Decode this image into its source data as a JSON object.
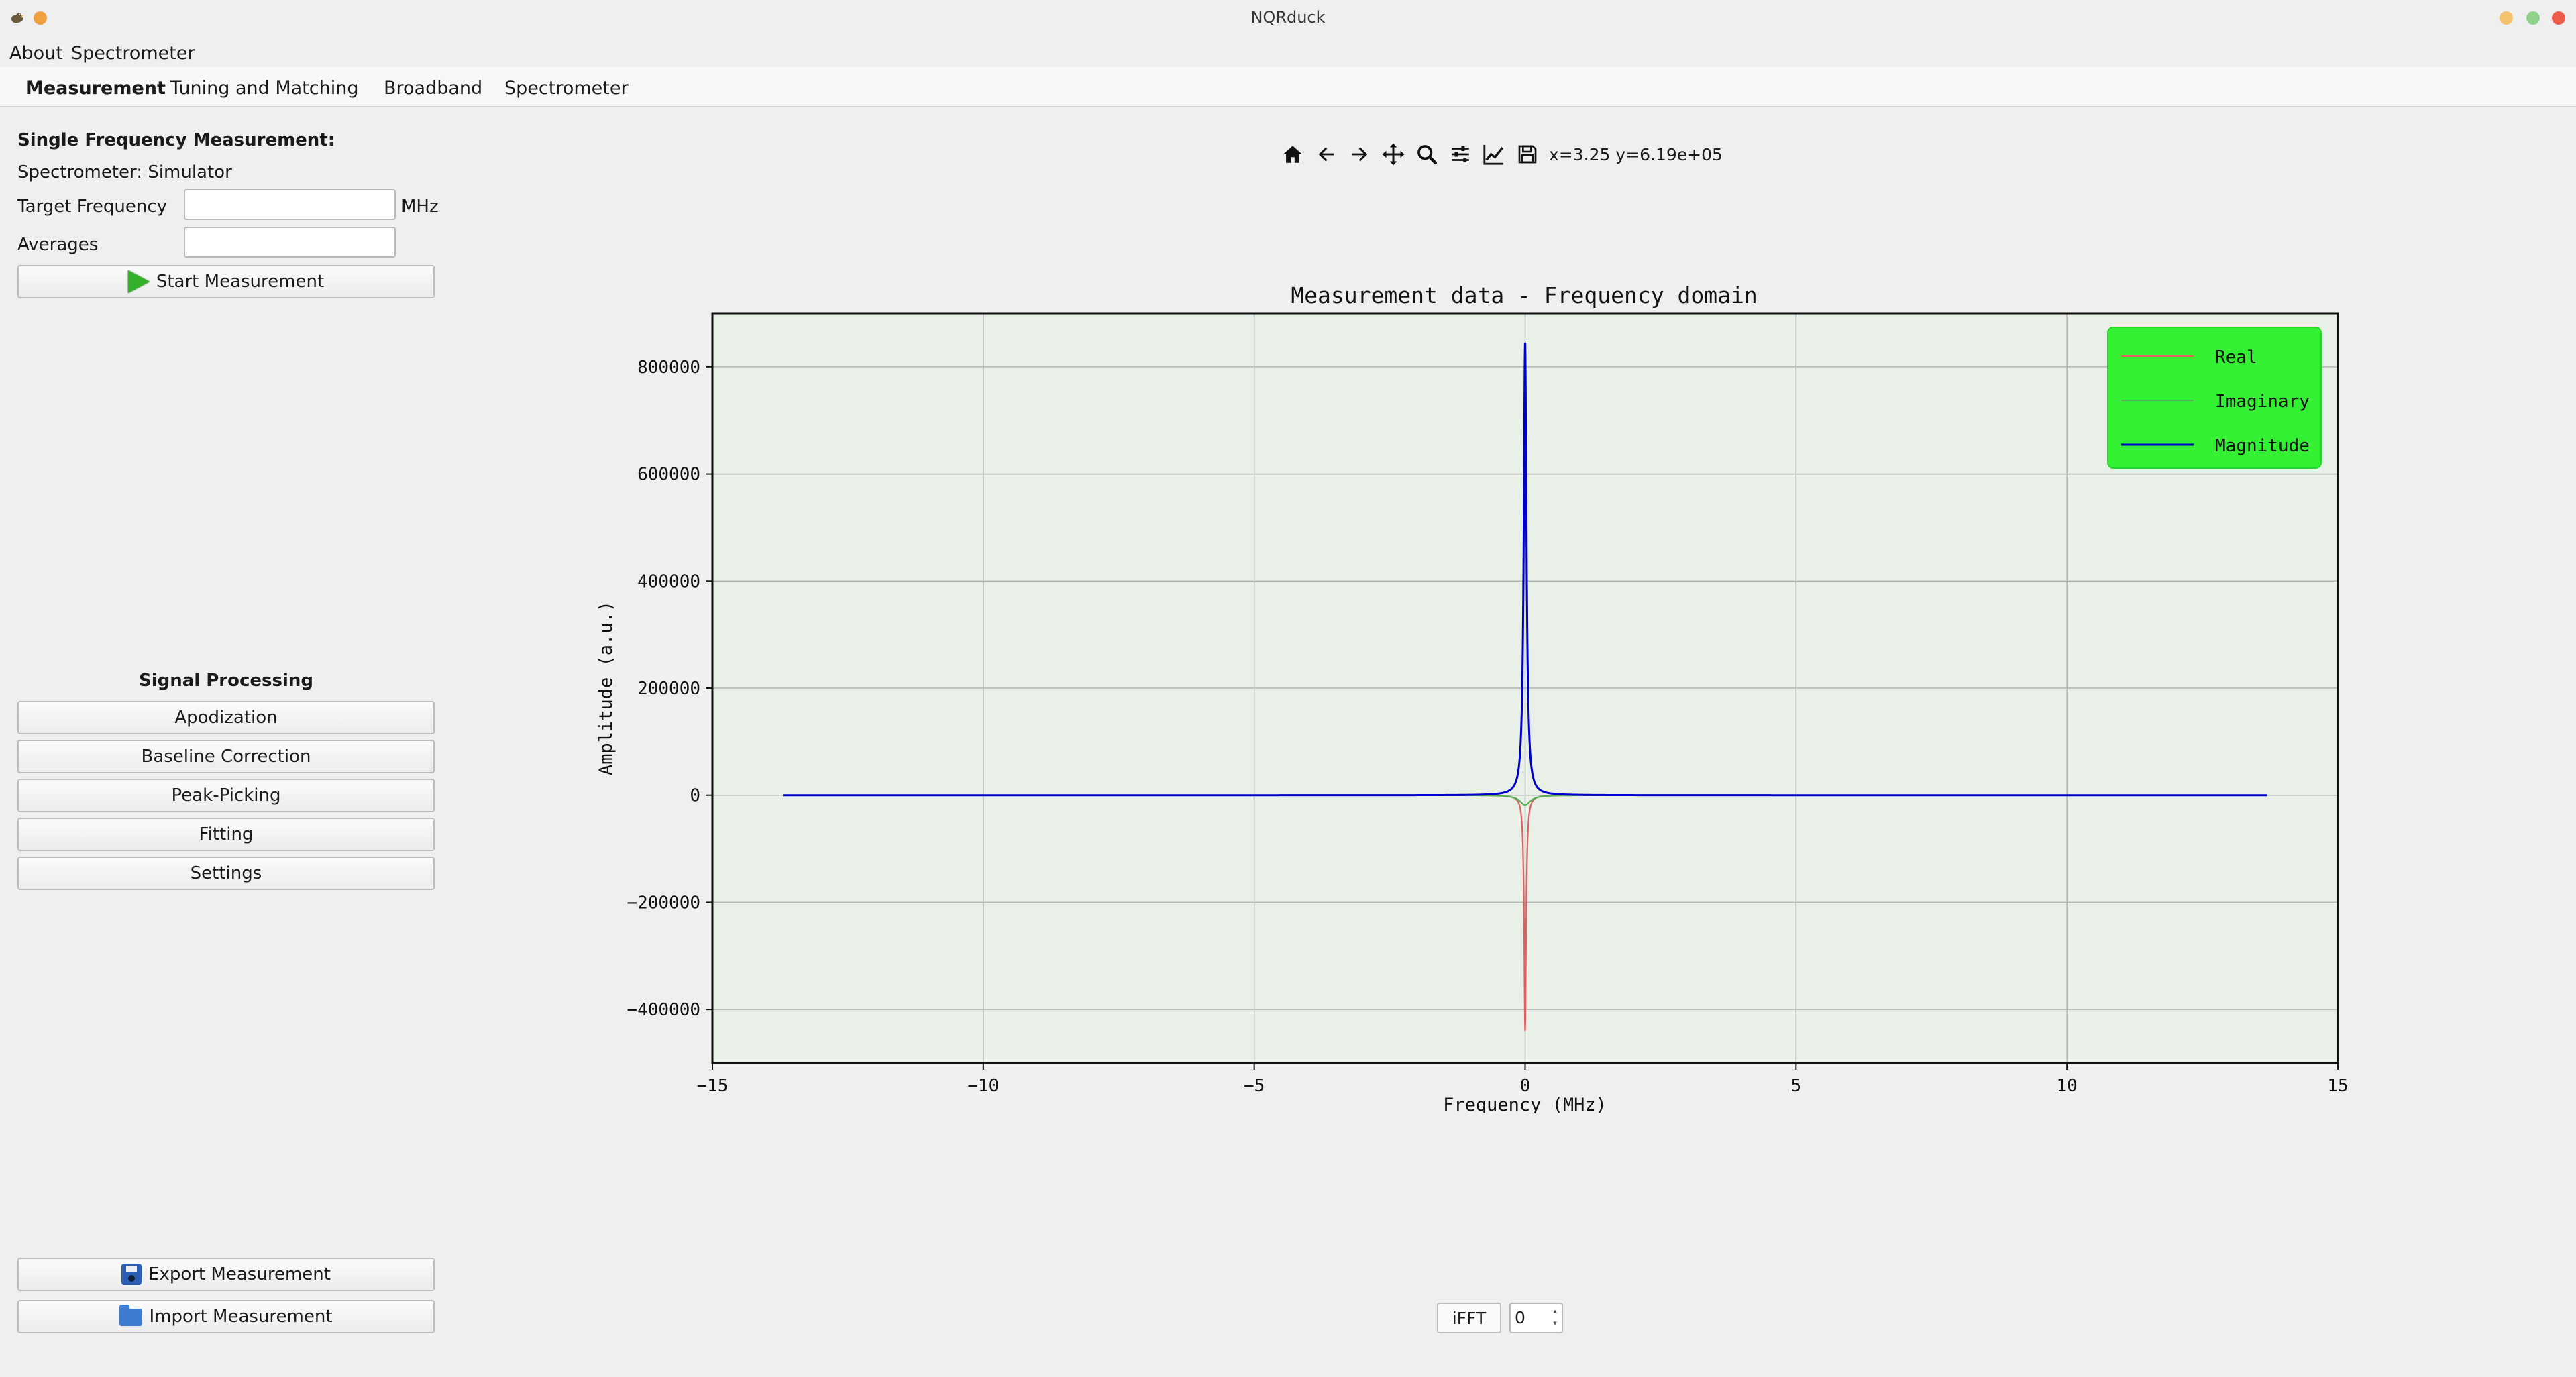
{
  "window": {
    "title": "NQRduck",
    "dot_colors": {
      "left": "#f0a040",
      "minimize": "#f5c36b",
      "maximize": "#8fd08a",
      "close": "#ef5b4b"
    }
  },
  "menu": [
    "About",
    "Spectrometer"
  ],
  "tabs": [
    {
      "label": "Measurement",
      "active": true
    },
    {
      "label": "Tuning and Matching"
    },
    {
      "label": "Broadband"
    },
    {
      "label": "Spectrometer"
    }
  ],
  "left_panel": {
    "section_title": "Single Frequency Measurement:",
    "spectrometer_label": "Spectrometer: Simulator",
    "target_frequency": {
      "label": "Target Frequency",
      "value": "",
      "unit": "MHz"
    },
    "averages": {
      "label": "Averages",
      "value": ""
    },
    "start_button": "Start Measurement",
    "signal_processing": {
      "title": "Signal Processing",
      "buttons": [
        "Apodization",
        "Baseline Correction",
        "Peak-Picking",
        "Fitting",
        "Settings"
      ]
    },
    "export_button": "Export Measurement",
    "import_button": "Import Measurement"
  },
  "toolbar": {
    "icons": [
      "home-icon",
      "back-arrow-icon",
      "forward-arrow-icon",
      "pan-icon",
      "zoom-icon",
      "configure-subplots-icon",
      "edit-axis-icon",
      "save-figure-icon"
    ],
    "coordinates": "x=3.25  y=6.19e+05"
  },
  "chart_data": {
    "type": "line",
    "title": "Measurement data - Frequency domain",
    "xlabel": "Frequency (MHz)",
    "ylabel": "Amplitude (a.u.)",
    "xlim": [
      -15,
      15
    ],
    "ylim": [
      -500000,
      900000
    ],
    "xticks": [
      -15,
      -10,
      -5,
      0,
      5,
      10,
      15
    ],
    "xtick_labels": [
      "−15",
      "−10",
      "−5",
      "0",
      "5",
      "10",
      "15"
    ],
    "yticks": [
      -400000,
      -200000,
      0,
      200000,
      400000,
      600000,
      800000
    ],
    "ytick_labels": [
      "−400000",
      "−200000",
      "0",
      "200000",
      "400000",
      "600000",
      "800000"
    ],
    "grid": true,
    "plot_background": "#e8f0e8",
    "legend": {
      "placement": "top-right",
      "background": "#33f033"
    },
    "x_range": [
      -13.7,
      13.7
    ],
    "series": [
      {
        "name": "Real",
        "color": "#e06060",
        "peak_x": 0,
        "peak_y": -440000,
        "baseline": 0
      },
      {
        "name": "Imaginary",
        "color": "#56b056",
        "peak_x": 0,
        "peak_y": -18000,
        "baseline": 0
      },
      {
        "name": "Magnitude",
        "color": "#0000cc",
        "peak_x": 0,
        "peak_y": 845000,
        "baseline": 0
      }
    ]
  },
  "bottom_controls": {
    "ifft_label": "iFFT",
    "spin_value": "0"
  }
}
